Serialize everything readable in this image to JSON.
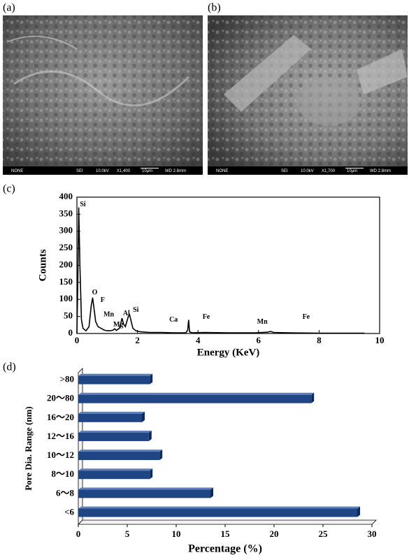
{
  "images": [
    {
      "label": "(a)",
      "caption": [
        "NONE",
        "SEI",
        "10.0kV",
        "X1,400",
        "10μm",
        "WD 2.8mm"
      ]
    },
    {
      "label": "(b)",
      "caption": [
        "NONE",
        "SEI",
        "10.0kV",
        "X1,700",
        "10μm",
        "WD 2.8mm"
      ]
    }
  ],
  "chart_data": [
    {
      "type": "line",
      "label": "(c)",
      "x_label": "Energy (KeV)",
      "y_label": "Counts",
      "x": [
        0,
        0.03,
        0.06,
        0.1,
        0.15,
        0.2,
        0.3,
        0.4,
        0.47,
        0.52,
        0.57,
        0.62,
        0.7,
        0.8,
        0.9,
        1.0,
        1.1,
        1.2,
        1.25,
        1.3,
        1.4,
        1.45,
        1.49,
        1.54,
        1.6,
        1.65,
        1.7,
        1.74,
        1.78,
        1.85,
        1.95,
        2.1,
        2.4,
        2.8,
        3.2,
        3.6,
        3.66,
        3.69,
        3.72,
        3.8,
        4.2,
        5.0,
        5.9,
        6.3,
        6.4,
        6.5,
        7.0,
        8.0,
        9.0,
        9.5
      ],
      "values": [
        0,
        150,
        370,
        200,
        40,
        15,
        8,
        20,
        80,
        105,
        70,
        35,
        20,
        15,
        10,
        8,
        8,
        10,
        14,
        9,
        15,
        30,
        45,
        28,
        20,
        35,
        50,
        55,
        40,
        15,
        8,
        5,
        3,
        3,
        2,
        2,
        10,
        40,
        5,
        2,
        3,
        2,
        2,
        4,
        6,
        3,
        2,
        1,
        1,
        1
      ],
      "color": "#000000",
      "xlim": [
        0,
        10
      ],
      "xticks": [
        0,
        2,
        4,
        6,
        8,
        10
      ],
      "ylim": [
        0,
        400
      ],
      "yticks": [
        0,
        50,
        100,
        150,
        200,
        250,
        300,
        350,
        400
      ],
      "annotations": [
        {
          "text": "Si",
          "x": 0.1,
          "y": 378
        },
        {
          "text": "O",
          "x": 0.5,
          "y": 120
        },
        {
          "text": "F",
          "x": 0.78,
          "y": 97
        },
        {
          "text": "Mn",
          "x": 0.88,
          "y": 55
        },
        {
          "text": "Mg",
          "x": 1.2,
          "y": 25
        },
        {
          "text": "Al",
          "x": 1.52,
          "y": 58
        },
        {
          "text": "Si",
          "x": 1.85,
          "y": 68
        },
        {
          "text": "Ca",
          "x": 3.05,
          "y": 40
        },
        {
          "text": "Fe",
          "x": 4.15,
          "y": 48
        },
        {
          "text": "Mn",
          "x": 5.95,
          "y": 33
        },
        {
          "text": "Fe",
          "x": 7.45,
          "y": 48
        }
      ]
    },
    {
      "type": "hbar",
      "label": "(d)",
      "x_label": "Percentage (%)",
      "y_label": "Pore Dia. Range (nm)",
      "categories": [
        "<6",
        "6～8",
        "8～10",
        "10～12",
        "12～16",
        "16～20",
        "20～80",
        ">80"
      ],
      "values": [
        28.5,
        13.5,
        7.3,
        8.3,
        7.2,
        6.5,
        23.8,
        7.3
      ],
      "color": "#1f4584",
      "xlim": [
        0,
        30
      ],
      "xticks": [
        0,
        5,
        10,
        15,
        20,
        25,
        30
      ]
    }
  ]
}
